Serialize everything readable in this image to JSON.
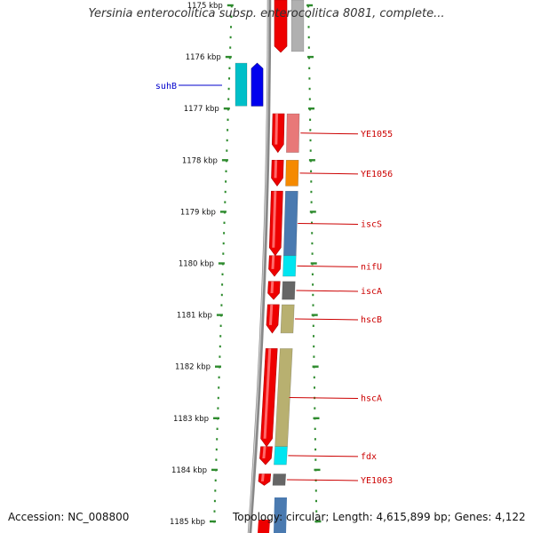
{
  "title": "Yersinia enterocolitica subsp. enterocolitica 8081, complete...",
  "footer": {
    "accession": "Accession: NC_008800",
    "topology": "Topology: circular; Length: 4,615,899 bp; Genes: 4,122"
  },
  "colors": {
    "tick": "#2e8b2e",
    "label_line_red": "#cc0000",
    "label_line_blue": "#0000cc",
    "backbone": "#888888",
    "cds": "#ee0000"
  },
  "scale": {
    "unit": "kbp",
    "labels": [
      "1175 kbp",
      "1176 kbp",
      "1177 kbp",
      "1178 kbp",
      "1179 kbp",
      "1180 kbp",
      "1181 kbp",
      "1182 kbp",
      "1183 kbp",
      "1184 kbp",
      "1185 kbp"
    ]
  },
  "genes": [
    {
      "name": "suhB",
      "strand": "reverse",
      "start_kbp": 1176.12,
      "end_kbp": 1176.95,
      "cog_color": "#00bfc8",
      "label_color": "#0000cc"
    },
    {
      "name": "YE1055",
      "strand": "forward",
      "start_kbp": 1177.1,
      "end_kbp": 1177.85,
      "cog_color": "#e87878",
      "label_color": "#cc0000"
    },
    {
      "name": "YE1056",
      "strand": "forward",
      "start_kbp": 1178.0,
      "end_kbp": 1178.5,
      "cog_color": "#f58a00",
      "label_color": "#cc0000"
    },
    {
      "name": "iscS",
      "strand": "forward",
      "start_kbp": 1178.6,
      "end_kbp": 1179.85,
      "cog_color": "#4a7ab0",
      "label_color": "#cc0000"
    },
    {
      "name": "nifU",
      "strand": "forward",
      "start_kbp": 1179.85,
      "end_kbp": 1180.25,
      "cog_color": "#00e5f0",
      "label_color": "#cc0000"
    },
    {
      "name": "iscA",
      "strand": "forward",
      "start_kbp": 1180.35,
      "end_kbp": 1180.7,
      "cog_color": "#666666",
      "label_color": "#cc0000"
    },
    {
      "name": "hscB",
      "strand": "forward",
      "start_kbp": 1180.8,
      "end_kbp": 1181.35,
      "cog_color": "#b8b070",
      "label_color": "#cc0000"
    },
    {
      "name": "hscA",
      "strand": "forward",
      "start_kbp": 1181.65,
      "end_kbp": 1183.55,
      "cog_color": "#b8b070",
      "label_color": "#cc0000"
    },
    {
      "name": "fdx",
      "strand": "forward",
      "start_kbp": 1183.55,
      "end_kbp": 1183.9,
      "cog_color": "#00e5f0",
      "label_color": "#cc0000"
    },
    {
      "name": "YE1063",
      "strand": "forward",
      "start_kbp": 1184.08,
      "end_kbp": 1184.3,
      "cog_color": "#666666",
      "label_color": "#cc0000"
    }
  ]
}
